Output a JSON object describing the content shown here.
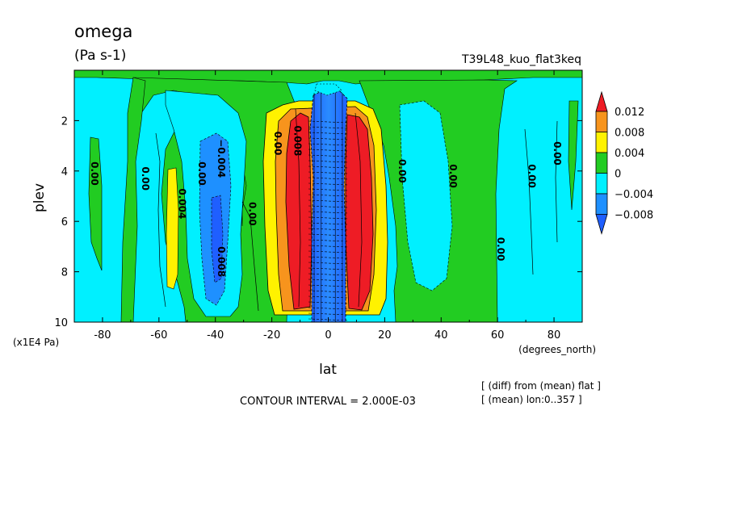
{
  "chart_data": {
    "type": "heatmap",
    "title": "omega",
    "units": "(Pa s-1)",
    "run_label": "T39L48_kuo_flat3keq",
    "xlabel": "lat",
    "ylabel": "plev",
    "xunits": "(degrees_north)",
    "yunits": "(x1E4 Pa)",
    "xlim": [
      -90,
      90
    ],
    "ylim": [
      0,
      10
    ],
    "xticks": [
      "-80",
      "-60",
      "-40",
      "-20",
      "0",
      "20",
      "40",
      "60",
      "80"
    ],
    "xtick_values": [
      -80,
      -60,
      -40,
      -20,
      0,
      20,
      40,
      60,
      80
    ],
    "yticks": [
      "2",
      "4",
      "6",
      "8",
      "10"
    ],
    "ytick_values": [
      2,
      4,
      6,
      8,
      10
    ],
    "y_inverted": true,
    "contour_interval_text": "CONTOUR INTERVAL = 2.000E-03",
    "notes": [
      "[ (diff) from (mean) flat ]",
      "[ (mean) lon:0..357 ]"
    ],
    "colorbar": {
      "labels": [
        "0.012",
        "0.008",
        "0.004",
        "0",
        "−0.004",
        "−0.008"
      ],
      "colors": [
        "#ee1c25",
        "#f7941d",
        "#fff200",
        "#22cc22",
        "#00f0ff",
        "#1e90ff",
        "#1f5fff"
      ]
    },
    "contour_labels": [
      {
        "text": "0.00",
        "lon": -84,
        "p": 4.1
      },
      {
        "text": "0.00",
        "lon": -66,
        "p": 4.3
      },
      {
        "text": "0.004",
        "lon": -53,
        "p": 5.3
      },
      {
        "text": "0.00",
        "lon": -46,
        "p": 4.1
      },
      {
        "text": "−0.004",
        "lon": -39,
        "p": 3.5
      },
      {
        "text": "0.008",
        "lon": -39,
        "p": 7.6
      },
      {
        "text": "0.00",
        "lon": -28,
        "p": 5.7
      },
      {
        "text": "0.00",
        "lon": -19,
        "p": 2.9
      },
      {
        "text": "0.008",
        "lon": -12,
        "p": 2.8
      },
      {
        "text": "0.00",
        "lon": 25,
        "p": 4.0
      },
      {
        "text": "0.00",
        "lon": 43,
        "p": 4.2
      },
      {
        "text": "0.00",
        "lon": 60,
        "p": 7.1
      },
      {
        "text": "0.00",
        "lon": 71,
        "p": 4.2
      },
      {
        "text": "0.00",
        "lon": 80,
        "p": 3.3
      }
    ]
  }
}
